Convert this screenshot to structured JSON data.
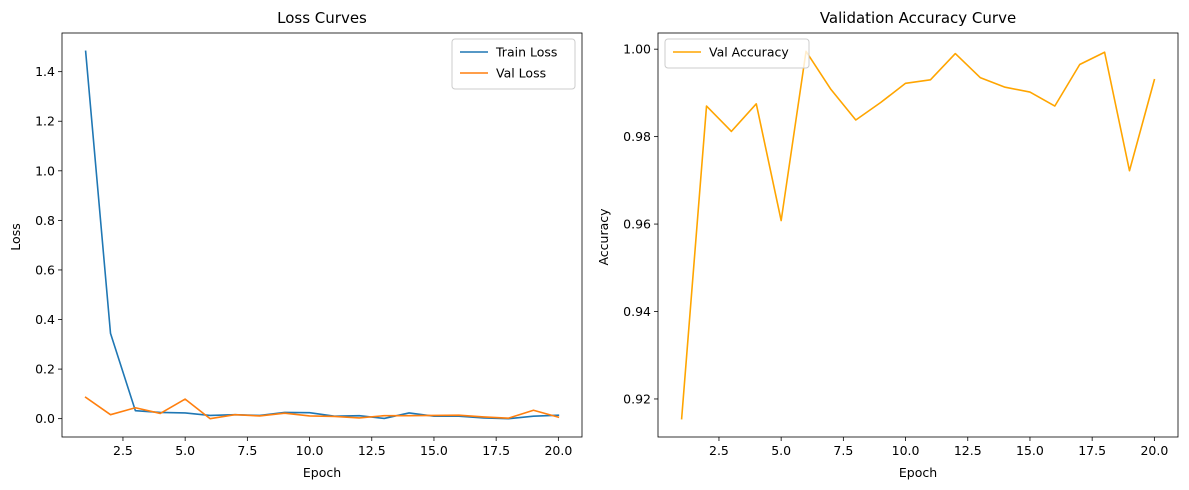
{
  "chart_data": [
    {
      "type": "line",
      "title": "Loss Curves",
      "xlabel": "Epoch",
      "ylabel": "Loss",
      "xlim": [
        0.05,
        20.95
      ],
      "ylim": [
        -0.074,
        1.556
      ],
      "xticks": [
        2.5,
        5.0,
        7.5,
        10.0,
        12.5,
        15.0,
        17.5,
        20.0
      ],
      "xtick_labels": [
        "2.5",
        "5.0",
        "7.5",
        "10.0",
        "12.5",
        "15.0",
        "17.5",
        "20.0"
      ],
      "yticks": [
        0.0,
        0.2,
        0.4,
        0.6,
        0.8,
        1.0,
        1.2,
        1.4
      ],
      "ytick_labels": [
        "0.0",
        "0.2",
        "0.4",
        "0.6",
        "0.8",
        "1.0",
        "1.2",
        "1.4"
      ],
      "grid": false,
      "legend_position": "top-right",
      "x": [
        1,
        2,
        3,
        4,
        5,
        6,
        7,
        8,
        9,
        10,
        11,
        12,
        13,
        14,
        15,
        16,
        17,
        18,
        19,
        20
      ],
      "series": [
        {
          "name": "Train Loss",
          "color": "#1f77b4",
          "values": [
            1.482,
            0.344,
            0.032,
            0.025,
            0.023,
            0.013,
            0.016,
            0.013,
            0.025,
            0.024,
            0.01,
            0.012,
            0.001,
            0.023,
            0.01,
            0.01,
            0.003,
            0.0,
            0.01,
            0.014
          ]
        },
        {
          "name": "Val Loss",
          "color": "#ff7f0e",
          "values": [
            0.086,
            0.016,
            0.044,
            0.021,
            0.079,
            0.0,
            0.016,
            0.011,
            0.022,
            0.011,
            0.009,
            0.003,
            0.012,
            0.012,
            0.013,
            0.014,
            0.007,
            0.002,
            0.034,
            0.006
          ]
        }
      ]
    },
    {
      "type": "line",
      "title": "Validation Accuracy Curve",
      "xlabel": "Epoch",
      "ylabel": "Accuracy",
      "xlim": [
        0.05,
        20.95
      ],
      "ylim": [
        0.9113,
        1.0037
      ],
      "xticks": [
        2.5,
        5.0,
        7.5,
        10.0,
        12.5,
        15.0,
        17.5,
        20.0
      ],
      "xtick_labels": [
        "2.5",
        "5.0",
        "7.5",
        "10.0",
        "12.5",
        "15.0",
        "17.5",
        "20.0"
      ],
      "yticks": [
        0.92,
        0.94,
        0.96,
        0.98,
        1.0
      ],
      "ytick_labels": [
        "0.92",
        "0.94",
        "0.96",
        "0.98",
        "1.00"
      ],
      "grid": false,
      "legend_position": "top-left",
      "x": [
        1,
        2,
        3,
        4,
        5,
        6,
        7,
        8,
        9,
        10,
        11,
        12,
        13,
        14,
        15,
        16,
        17,
        18,
        19,
        20
      ],
      "series": [
        {
          "name": "Val Accuracy",
          "color": "#ffa500",
          "values": [
            0.9155,
            0.987,
            0.9812,
            0.9875,
            0.9608,
            0.9995,
            0.9908,
            0.9838,
            0.9878,
            0.9922,
            0.993,
            0.999,
            0.9935,
            0.9913,
            0.9902,
            0.987,
            0.9965,
            0.9993,
            0.9722,
            0.993
          ]
        }
      ]
    }
  ]
}
